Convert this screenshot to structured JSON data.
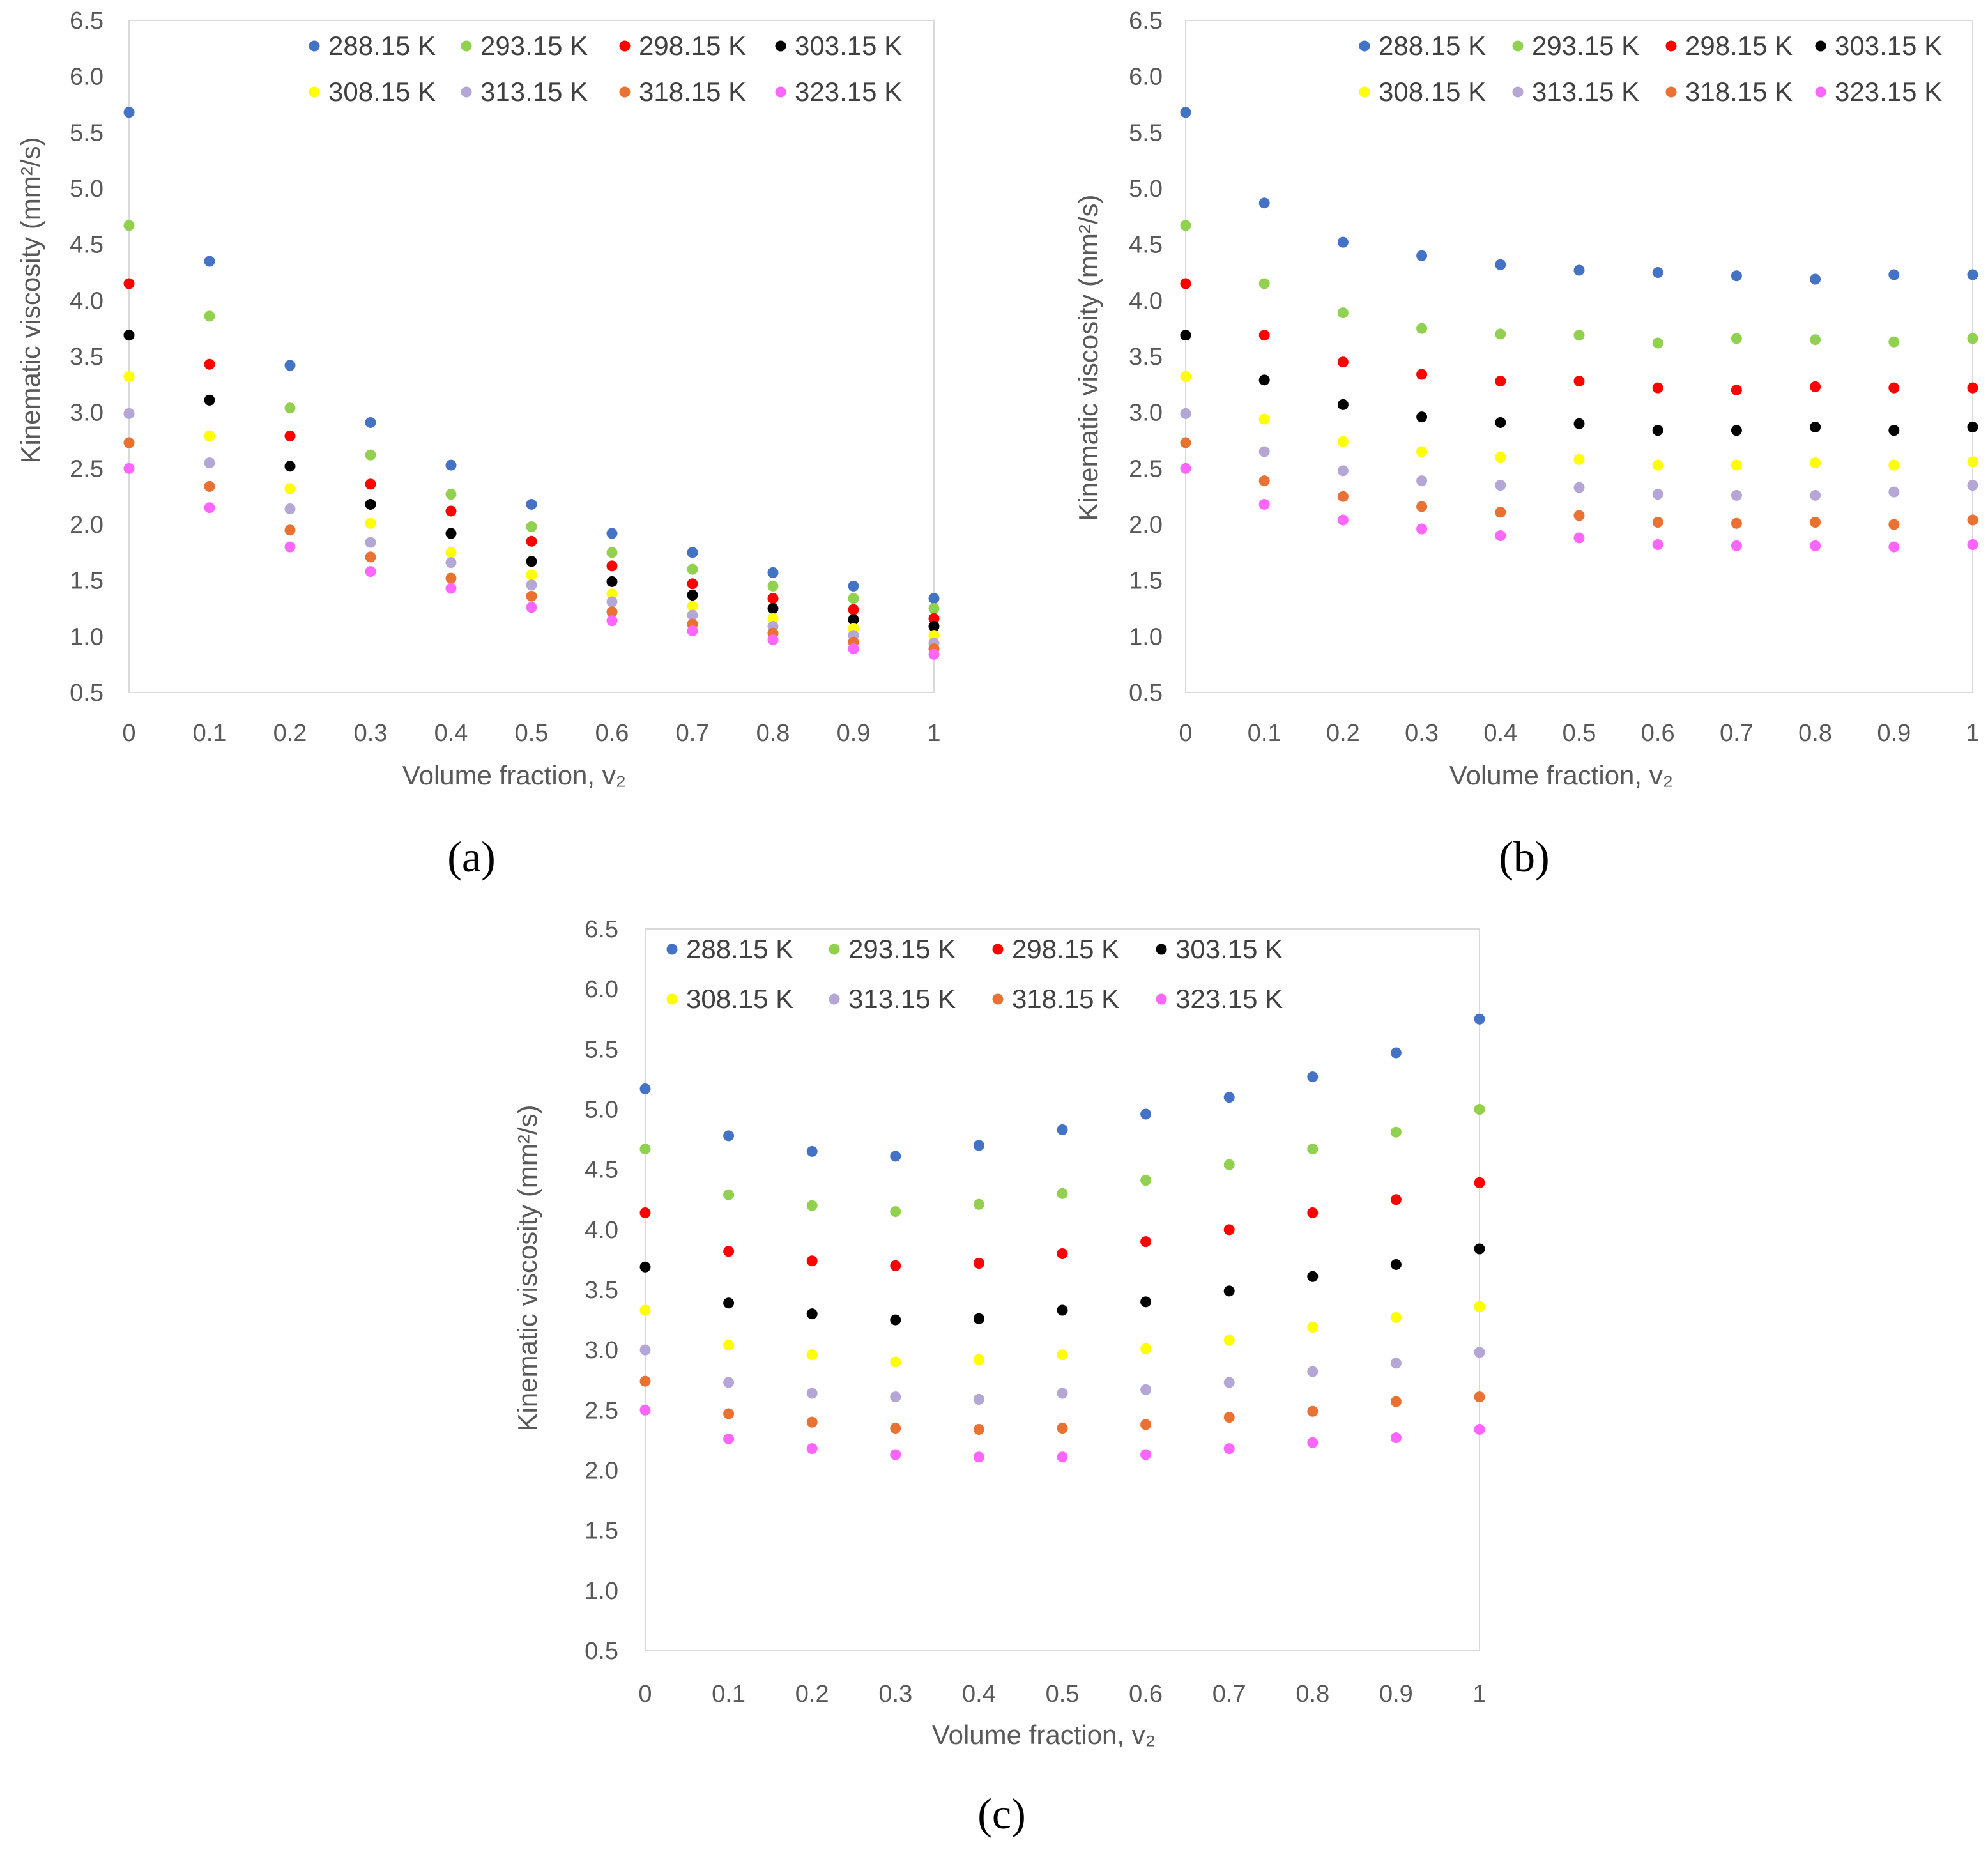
{
  "legend": {
    "series_names": [
      "288.15 K",
      "293.15 K",
      "298.15 K",
      "303.15 K",
      "308.15 K",
      "313.15 K",
      "318.15 K",
      "323.15 K"
    ],
    "colors": [
      "#4472C4",
      "#92D050",
      "#FF0000",
      "#000000",
      "#FFFF00",
      "#B4A7D6",
      "#E97132",
      "#FF66FF"
    ]
  },
  "chart_data": [
    {
      "panel": "(a)",
      "type": "scatter",
      "xlabel": "Volume fraction, v₂",
      "ylabel": "Kinematic viscosity (mm²/s)",
      "xlim": [
        0,
        1
      ],
      "ylim": [
        0.5,
        6.5
      ],
      "x_ticks": [
        "0",
        "0.1",
        "0.2",
        "0.3",
        "0.4",
        "0.5",
        "0.6",
        "0.7",
        "0.8",
        "0.9",
        "1"
      ],
      "y_ticks": [
        "0.5",
        "1.0",
        "1.5",
        "2.0",
        "2.5",
        "3.0",
        "3.5",
        "4.0",
        "4.5",
        "5.0",
        "5.5",
        "6.0",
        "6.5"
      ],
      "x": [
        0,
        0.1,
        0.2,
        0.3,
        0.4,
        0.5,
        0.6,
        0.7,
        0.8,
        0.9,
        1.0
      ],
      "series": [
        {
          "name": "288.15 K",
          "values": [
            5.68,
            4.35,
            3.42,
            2.91,
            2.53,
            2.18,
            1.92,
            1.75,
            1.57,
            1.45,
            1.34
          ]
        },
        {
          "name": "293.15 K",
          "values": [
            4.67,
            3.86,
            3.04,
            2.62,
            2.27,
            1.98,
            1.75,
            1.6,
            1.45,
            1.34,
            1.25
          ]
        },
        {
          "name": "298.15 K",
          "values": [
            4.15,
            3.43,
            2.79,
            2.36,
            2.12,
            1.85,
            1.63,
            1.47,
            1.34,
            1.24,
            1.16
          ]
        },
        {
          "name": "303.15 K",
          "values": [
            3.69,
            3.11,
            2.52,
            2.18,
            1.92,
            1.67,
            1.49,
            1.37,
            1.25,
            1.15,
            1.09
          ]
        },
        {
          "name": "308.15 K",
          "values": [
            3.32,
            2.79,
            2.32,
            2.01,
            1.75,
            1.55,
            1.38,
            1.27,
            1.16,
            1.07,
            1.01
          ]
        },
        {
          "name": "313.15 K",
          "values": [
            2.99,
            2.55,
            2.14,
            1.84,
            1.66,
            1.46,
            1.31,
            1.19,
            1.09,
            1.01,
            0.94
          ]
        },
        {
          "name": "318.15 K",
          "values": [
            2.73,
            2.34,
            1.95,
            1.71,
            1.52,
            1.36,
            1.22,
            1.11,
            1.03,
            0.95,
            0.89
          ]
        },
        {
          "name": "323.15 K",
          "values": [
            2.5,
            2.15,
            1.8,
            1.58,
            1.43,
            1.26,
            1.14,
            1.05,
            0.97,
            0.89,
            0.84
          ]
        }
      ]
    },
    {
      "panel": "(b)",
      "type": "scatter",
      "xlabel": "Volume fraction, v₂",
      "ylabel": "Kinematic viscosity (mm²/s)",
      "xlim": [
        0,
        1
      ],
      "ylim": [
        0.5,
        6.5
      ],
      "x_ticks": [
        "0",
        "0.1",
        "0.2",
        "0.3",
        "0.4",
        "0.5",
        "0.6",
        "0.7",
        "0.8",
        "0.9",
        "1"
      ],
      "y_ticks": [
        "0.5",
        "1.0",
        "1.5",
        "2.0",
        "2.5",
        "3.0",
        "3.5",
        "4.0",
        "4.5",
        "5.0",
        "5.5",
        "6.0",
        "6.5"
      ],
      "x": [
        0,
        0.1,
        0.2,
        0.3,
        0.4,
        0.5,
        0.6,
        0.7,
        0.8,
        0.9,
        1.0
      ],
      "series": [
        {
          "name": "288.15 K",
          "values": [
            5.68,
            4.87,
            4.52,
            4.4,
            4.32,
            4.27,
            4.25,
            4.22,
            4.19,
            4.23,
            4.23
          ]
        },
        {
          "name": "293.15 K",
          "values": [
            4.67,
            4.15,
            3.89,
            3.75,
            3.7,
            3.69,
            3.62,
            3.66,
            3.65,
            3.63,
            3.66
          ]
        },
        {
          "name": "298.15 K",
          "values": [
            4.15,
            3.69,
            3.45,
            3.34,
            3.28,
            3.28,
            3.22,
            3.2,
            3.23,
            3.22,
            3.22
          ]
        },
        {
          "name": "303.15 K",
          "values": [
            3.69,
            3.29,
            3.07,
            2.96,
            2.91,
            2.9,
            2.84,
            2.84,
            2.87,
            2.84,
            2.87
          ]
        },
        {
          "name": "308.15 K",
          "values": [
            3.32,
            2.94,
            2.74,
            2.65,
            2.6,
            2.58,
            2.53,
            2.53,
            2.55,
            2.53,
            2.56
          ]
        },
        {
          "name": "313.15 K",
          "values": [
            2.99,
            2.65,
            2.48,
            2.39,
            2.35,
            2.33,
            2.27,
            2.26,
            2.26,
            2.29,
            2.35
          ]
        },
        {
          "name": "318.15 K",
          "values": [
            2.73,
            2.39,
            2.25,
            2.16,
            2.11,
            2.08,
            2.02,
            2.01,
            2.02,
            2.0,
            2.04
          ]
        },
        {
          "name": "323.15 K",
          "values": [
            2.5,
            2.18,
            2.04,
            1.96,
            1.9,
            1.88,
            1.82,
            1.81,
            1.81,
            1.8,
            1.82
          ]
        }
      ]
    },
    {
      "panel": "(c)",
      "type": "scatter",
      "xlabel": "Volume fraction, v₂",
      "ylabel": "Kinematic viscosity (mm²/s)",
      "xlim": [
        0,
        1
      ],
      "ylim": [
        0.5,
        6.5
      ],
      "x_ticks": [
        "0",
        "0.1",
        "0.2",
        "0.3",
        "0.4",
        "0.5",
        "0.6",
        "0.7",
        "0.8",
        "0.9",
        "1"
      ],
      "y_ticks": [
        "0.5",
        "1.0",
        "1.5",
        "2.0",
        "2.5",
        "3.0",
        "3.5",
        "4.0",
        "4.5",
        "5.0",
        "5.5",
        "6.0",
        "6.5"
      ],
      "x": [
        0,
        0.1,
        0.2,
        0.3,
        0.4,
        0.5,
        0.6,
        0.7,
        0.8,
        0.9,
        1.0
      ],
      "series": [
        {
          "name": "288.15 K",
          "values": [
            5.17,
            4.78,
            4.65,
            4.61,
            4.7,
            4.83,
            4.96,
            5.1,
            5.27,
            5.47,
            5.75
          ]
        },
        {
          "name": "293.15 K",
          "values": [
            4.67,
            4.29,
            4.2,
            4.15,
            4.21,
            4.3,
            4.41,
            4.54,
            4.67,
            4.81,
            5.0
          ]
        },
        {
          "name": "298.15 K",
          "values": [
            4.14,
            3.82,
            3.74,
            3.7,
            3.72,
            3.8,
            3.9,
            4.0,
            4.14,
            4.25,
            4.39
          ]
        },
        {
          "name": "303.15 K",
          "values": [
            3.69,
            3.39,
            3.3,
            3.25,
            3.26,
            3.33,
            3.4,
            3.49,
            3.61,
            3.71,
            3.84
          ]
        },
        {
          "name": "308.15 K",
          "values": [
            3.33,
            3.04,
            2.96,
            2.9,
            2.92,
            2.96,
            3.01,
            3.08,
            3.19,
            3.27,
            3.36
          ]
        },
        {
          "name": "313.15 K",
          "values": [
            3.0,
            2.73,
            2.64,
            2.61,
            2.59,
            2.64,
            2.67,
            2.73,
            2.82,
            2.89,
            2.98
          ]
        },
        {
          "name": "318.15 K",
          "values": [
            2.74,
            2.47,
            2.4,
            2.35,
            2.34,
            2.35,
            2.38,
            2.44,
            2.49,
            2.57,
            2.61
          ]
        },
        {
          "name": "323.15 K",
          "values": [
            2.5,
            2.26,
            2.18,
            2.13,
            2.11,
            2.11,
            2.13,
            2.18,
            2.23,
            2.27,
            2.34
          ]
        }
      ]
    }
  ]
}
